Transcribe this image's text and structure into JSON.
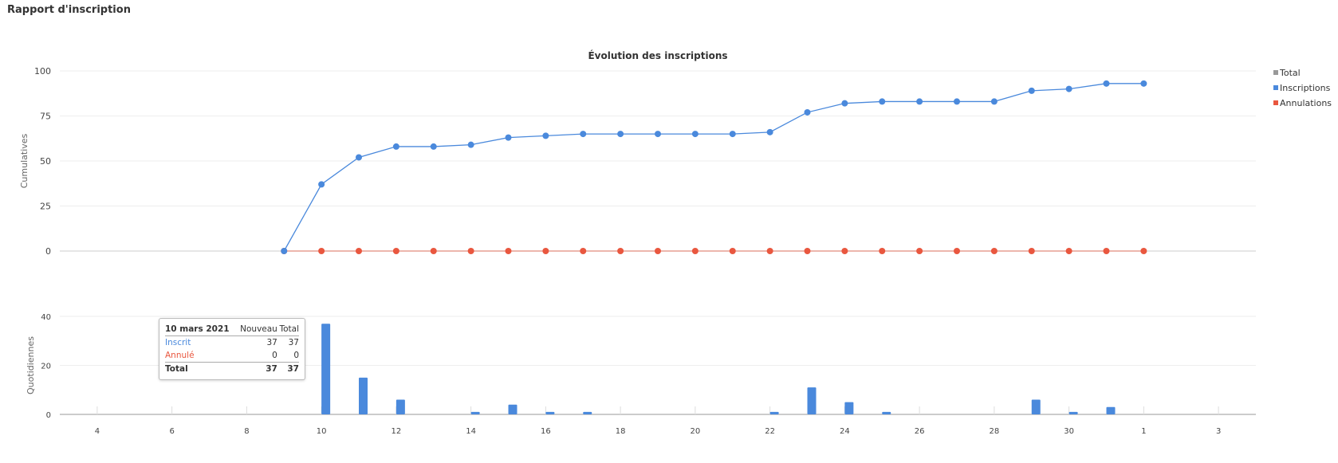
{
  "page": {
    "title": "Rapport d'inscription"
  },
  "colors": {
    "total": "#999999",
    "inscriptions": "#4a89dc",
    "annulations": "#e9573f"
  },
  "chart_data": {
    "type": "line+bar",
    "title": "Évolution des inscriptions",
    "legend": {
      "placement": "right",
      "entries": [
        "Total",
        "Inscriptions",
        "Annulations"
      ]
    },
    "x_ticks": [
      "4",
      "6",
      "8",
      "10",
      "12",
      "14",
      "16",
      "18",
      "20",
      "22",
      "24",
      "26",
      "28",
      "30",
      "1",
      "3"
    ],
    "x_dates": [
      "2021-03-04",
      "2021-03-06",
      "2021-03-08",
      "2021-03-10",
      "2021-03-12",
      "2021-03-14",
      "2021-03-16",
      "2021-03-18",
      "2021-03-20",
      "2021-03-22",
      "2021-03-24",
      "2021-03-26",
      "2021-03-28",
      "2021-03-30",
      "2021-04-01",
      "2021-04-03"
    ],
    "xlim": [
      "2021-03-03",
      "2021-04-04"
    ],
    "top": {
      "ylabel": "Cumulatives",
      "ylim": [
        0,
        100
      ],
      "y_ticks": [
        "0",
        "25",
        "50",
        "75",
        "100"
      ],
      "grid": true,
      "dates": [
        "2021-03-09",
        "2021-03-10",
        "2021-03-11",
        "2021-03-12",
        "2021-03-13",
        "2021-03-14",
        "2021-03-15",
        "2021-03-16",
        "2021-03-17",
        "2021-03-18",
        "2021-03-19",
        "2021-03-20",
        "2021-03-21",
        "2021-03-22",
        "2021-03-23",
        "2021-03-24",
        "2021-03-25",
        "2021-03-26",
        "2021-03-27",
        "2021-03-28",
        "2021-03-29",
        "2021-03-30",
        "2021-03-31",
        "2021-04-01"
      ],
      "series": [
        {
          "name": "Inscriptions",
          "values": [
            0,
            37,
            52,
            58,
            58,
            59,
            63,
            64,
            65,
            65,
            65,
            65,
            65,
            66,
            77,
            82,
            83,
            83,
            83,
            83,
            89,
            90,
            93,
            93
          ]
        },
        {
          "name": "Annulations",
          "values": [
            0,
            0,
            0,
            0,
            0,
            0,
            0,
            0,
            0,
            0,
            0,
            0,
            0,
            0,
            0,
            0,
            0,
            0,
            0,
            0,
            0,
            0,
            0,
            0
          ]
        }
      ]
    },
    "bottom": {
      "ylabel": "Quotidiennes",
      "ylim": [
        0,
        40
      ],
      "y_ticks": [
        "0",
        "20",
        "40"
      ],
      "grid": true,
      "series": [
        {
          "name": "Inscriptions",
          "values": [
            0,
            37,
            15,
            6,
            0,
            1,
            4,
            1,
            1,
            0,
            0,
            0,
            0,
            1,
            11,
            5,
            1,
            0,
            0,
            0,
            6,
            1,
            3,
            0
          ]
        }
      ]
    }
  },
  "tooltip": {
    "date": "10 mars 2021",
    "col_new": "Nouveau",
    "col_total": "Total",
    "rows": [
      {
        "label": "Inscrit",
        "new": "37",
        "total": "37"
      },
      {
        "label": "Annulé",
        "new": "0",
        "total": "0"
      }
    ],
    "footer": {
      "label": "Total",
      "new": "37",
      "total": "37"
    }
  }
}
